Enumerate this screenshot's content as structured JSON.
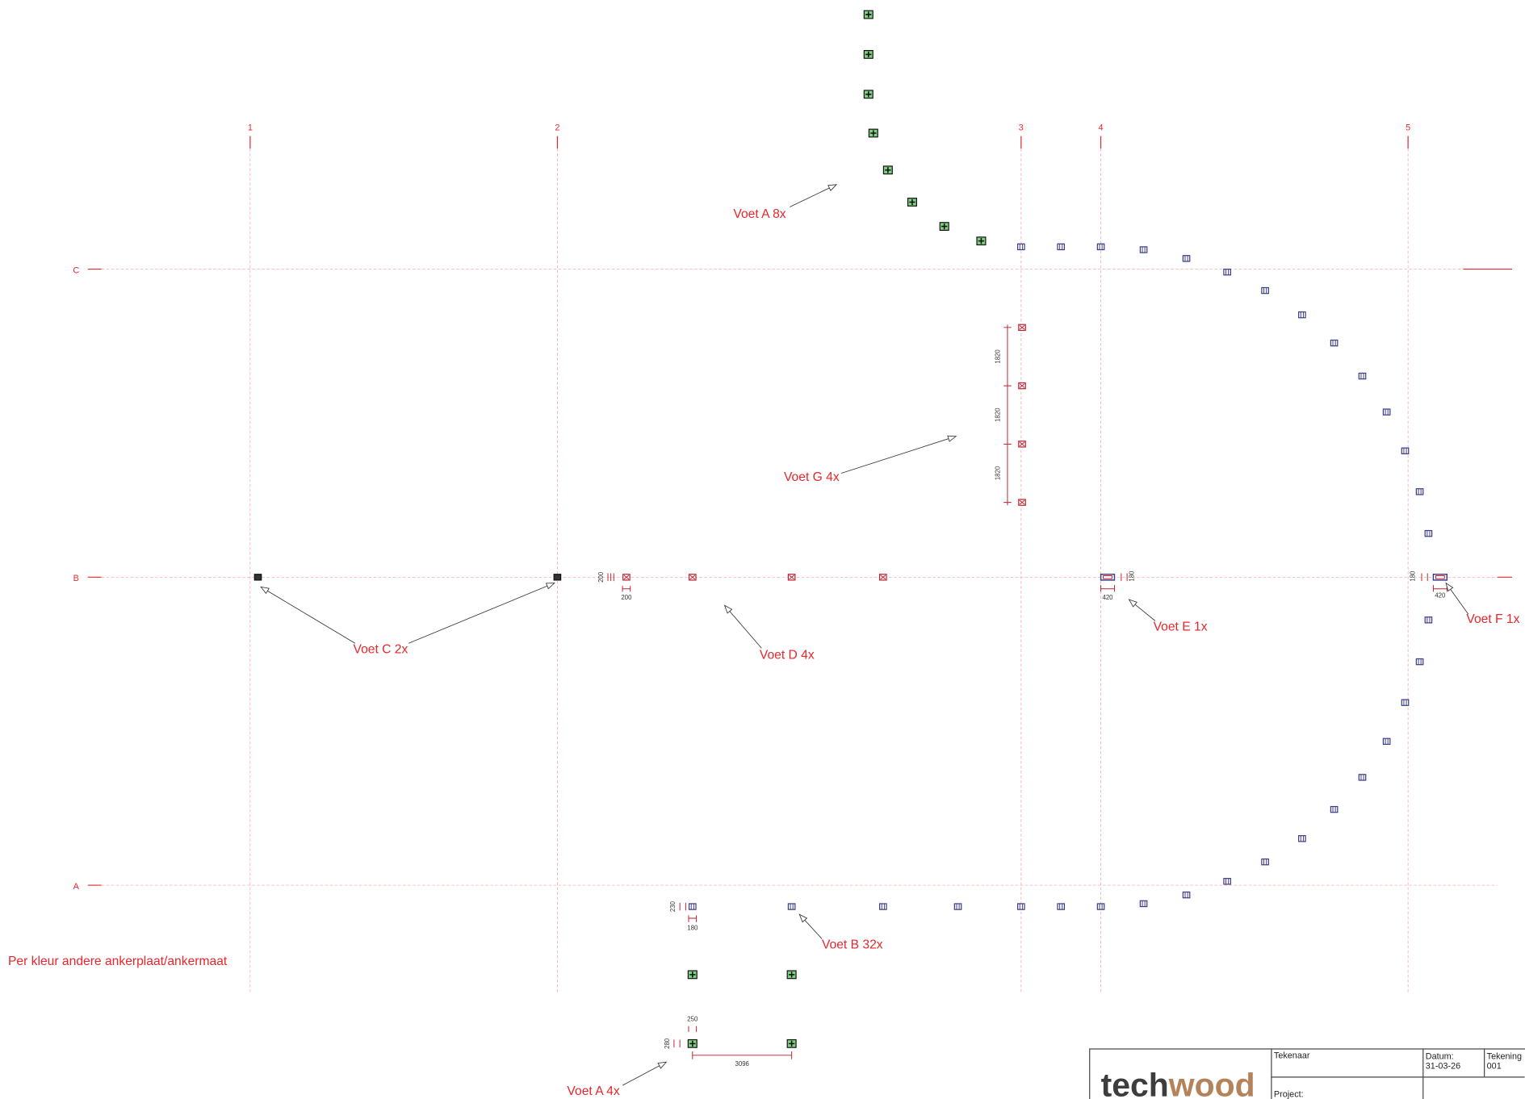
{
  "grid": {
    "columns": [
      "1",
      "2",
      "3",
      "4",
      "5"
    ],
    "rows": [
      "C",
      "B",
      "A"
    ]
  },
  "labels": [
    "Voet A 8x",
    "Voet G 4x",
    "Voet C 2x",
    "Voet D 4x",
    "Voet E 1x",
    "Voet F 1x",
    "Voet B 32x",
    "Voet A 4x"
  ],
  "note": "Per kleur andere ankerplaat/ankermaat",
  "dimensions": [
    "1820",
    "1820",
    "1820",
    "200",
    "200",
    "420",
    "180",
    "180",
    "420",
    "230",
    "180",
    "250",
    "280",
    "3096"
  ],
  "title_block": {
    "logo_part1": "tech",
    "logo_part2": "wood",
    "drawer": "Tekenaar",
    "date_label": "Datum:",
    "date": "31-03-26",
    "drawing_label": "Tekening",
    "drawing": "001",
    "project": "Project:"
  }
}
